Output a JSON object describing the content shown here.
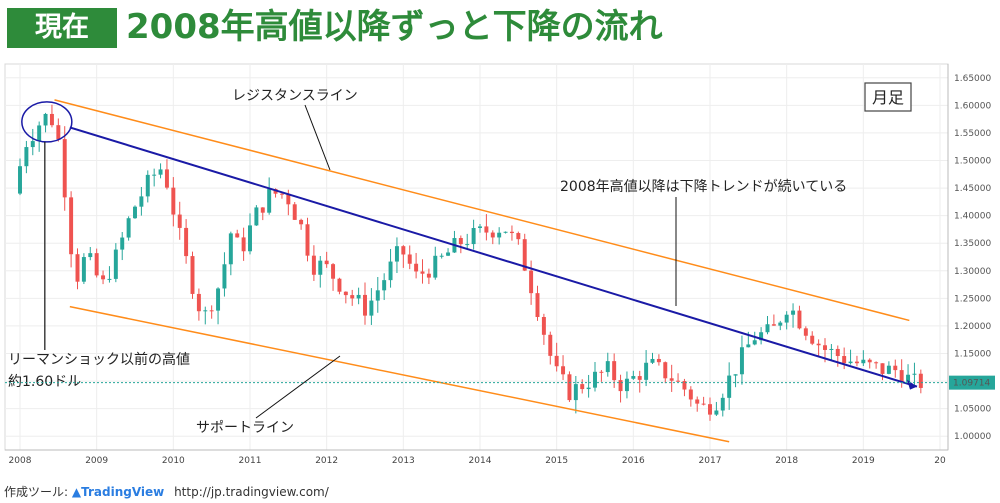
{
  "header": {
    "badge": "現在",
    "title": "2008年高値以降ずっと下降の流れ"
  },
  "footer": {
    "label": "作成ツール:",
    "logo_icon": "tradingview-logo-icon",
    "brand": "TradingView",
    "url": "http://jp.tradingview.com/"
  },
  "chart_data": {
    "type": "candlestick",
    "timeframe_label": "月足",
    "price_axis": {
      "ticks": [
        "1.65000",
        "1.60000",
        "1.55000",
        "1.50000",
        "1.45000",
        "1.40000",
        "1.35000",
        "1.30000",
        "1.25000",
        "1.20000",
        "1.15000",
        "1.10000",
        "1.05000",
        "1.00000"
      ],
      "ylim": [
        0.975,
        1.675
      ],
      "last_price": "1.09714",
      "last_price_color": "#26a69a"
    },
    "time_axis": {
      "ticks": [
        "2008",
        "2009",
        "2010",
        "2011",
        "2012",
        "2013",
        "2014",
        "2015",
        "2016",
        "2017",
        "2018",
        "2019",
        "20"
      ],
      "xlim": [
        2008.0,
        2020.0
      ]
    },
    "colors": {
      "up": "#26a69a",
      "down": "#ef5350",
      "resistance": "#ff8c1a",
      "support": "#ff8c1a",
      "trend": "#1a1aa6"
    },
    "annotations": [
      {
        "text": "レジスタンスライン"
      },
      {
        "text": "2008年高値以降は下降トレンドが続いている"
      },
      {
        "text": "リーマンショック以前の高値"
      },
      {
        "text": "約1.60ドル"
      },
      {
        "text": "サポートライン"
      }
    ],
    "lines": [
      {
        "name": "resistance",
        "from": {
          "x": 2008.45,
          "y": 1.61
        },
        "to": {
          "x": 2019.6,
          "y": 1.21
        }
      },
      {
        "name": "support",
        "from": {
          "x": 2008.65,
          "y": 1.235
        },
        "to": {
          "x": 2017.25,
          "y": 0.99
        }
      },
      {
        "name": "trend",
        "from": {
          "x": 2008.65,
          "y": 1.56
        },
        "to": {
          "x": 2019.7,
          "y": 1.09
        }
      }
    ],
    "anchors": [
      [
        2008.0,
        1.44
      ],
      [
        2008.15,
        1.53
      ],
      [
        2008.4,
        1.58
      ],
      [
        2008.55,
        1.57
      ],
      [
        2008.65,
        1.47
      ],
      [
        2008.8,
        1.28
      ],
      [
        2008.95,
        1.33
      ],
      [
        2009.15,
        1.27
      ],
      [
        2009.35,
        1.33
      ],
      [
        2009.55,
        1.41
      ],
      [
        2009.8,
        1.47
      ],
      [
        2009.95,
        1.49
      ],
      [
        2010.15,
        1.37
      ],
      [
        2010.4,
        1.24
      ],
      [
        2010.5,
        1.22
      ],
      [
        2010.7,
        1.28
      ],
      [
        2010.85,
        1.38
      ],
      [
        2010.95,
        1.33
      ],
      [
        2011.15,
        1.4
      ],
      [
        2011.35,
        1.44
      ],
      [
        2011.55,
        1.44
      ],
      [
        2011.75,
        1.38
      ],
      [
        2011.9,
        1.31
      ],
      [
        2012.05,
        1.31
      ],
      [
        2012.35,
        1.26
      ],
      [
        2012.6,
        1.23
      ],
      [
        2012.85,
        1.29
      ],
      [
        2013.05,
        1.34
      ],
      [
        2013.25,
        1.29
      ],
      [
        2013.5,
        1.31
      ],
      [
        2013.8,
        1.35
      ],
      [
        2014.1,
        1.37
      ],
      [
        2014.4,
        1.38
      ],
      [
        2014.6,
        1.34
      ],
      [
        2014.8,
        1.25
      ],
      [
        2015.05,
        1.12
      ],
      [
        2015.25,
        1.08
      ],
      [
        2015.5,
        1.1
      ],
      [
        2015.75,
        1.12
      ],
      [
        2015.95,
        1.09
      ],
      [
        2016.3,
        1.13
      ],
      [
        2016.55,
        1.11
      ],
      [
        2016.8,
        1.08
      ],
      [
        2016.95,
        1.05
      ],
      [
        2017.15,
        1.06
      ],
      [
        2017.4,
        1.12
      ],
      [
        2017.65,
        1.18
      ],
      [
        2017.9,
        1.19
      ],
      [
        2018.1,
        1.24
      ],
      [
        2018.3,
        1.2
      ],
      [
        2018.55,
        1.16
      ],
      [
        2018.85,
        1.14
      ],
      [
        2019.05,
        1.13
      ],
      [
        2019.35,
        1.12
      ],
      [
        2019.55,
        1.12
      ],
      [
        2019.7,
        1.1
      ],
      [
        2019.75,
        1.097
      ]
    ]
  }
}
